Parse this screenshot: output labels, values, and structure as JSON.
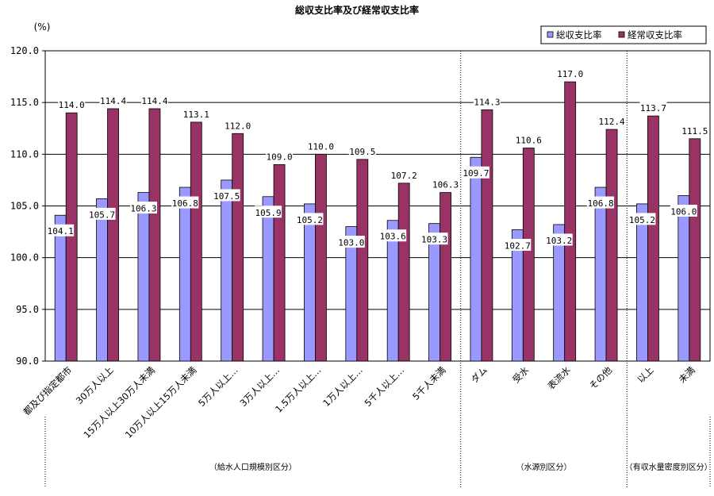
{
  "chart_data": {
    "type": "bar",
    "title": "総収支比率及び経常収支比率",
    "unit_label": "(%)",
    "ylim": [
      90.0,
      120.0
    ],
    "yticks": [
      "90.0",
      "95.0",
      "100.0",
      "105.0",
      "110.0",
      "115.0",
      "120.0"
    ],
    "categories": [
      "都及び指定都市",
      "30万人以上",
      "15万人以上30万人未満",
      "10万人以上15万人未満",
      "5万人以上…",
      "3万人以上…",
      "1.5万人以上…",
      "1万人以上…",
      "5千人以上…",
      "5千人未満",
      "ダム",
      "受水",
      "表流水",
      "その他",
      "以上",
      "未満"
    ],
    "series": [
      {
        "name": "総収支比率",
        "color": "#9999ff",
        "values": [
          104.1,
          105.7,
          106.3,
          106.8,
          107.5,
          105.9,
          105.2,
          103.0,
          103.6,
          103.3,
          109.7,
          102.7,
          103.2,
          106.8,
          105.2,
          106.0
        ],
        "labels": [
          "104.1",
          "105.7",
          "106.3",
          "106.8",
          "107.5",
          "105.9",
          "105.2",
          "103.0",
          "103.6",
          "103.3",
          "109.7",
          "102.7",
          "103.2",
          "106.8",
          "105.2",
          "106.0"
        ]
      },
      {
        "name": "経常収支比率",
        "color": "#993366",
        "values": [
          114.0,
          114.4,
          114.4,
          113.1,
          112.0,
          109.0,
          110.0,
          109.5,
          107.2,
          106.3,
          114.3,
          110.6,
          117.0,
          112.4,
          113.7,
          111.5
        ],
        "labels": [
          "114.0",
          "114.4",
          "114.4",
          "113.1",
          "112.0",
          "109.0",
          "110.0",
          "109.5",
          "107.2",
          "106.3",
          "114.3",
          "110.6",
          "117.0",
          "112.4",
          "113.7",
          "111.5"
        ]
      }
    ],
    "groups": [
      {
        "label": "（給水人口規模別区分）",
        "from": 0,
        "to": 9
      },
      {
        "label": "（水源別区分）",
        "from": 10,
        "to": 13
      },
      {
        "label": "（有収水量密度別区分）",
        "from": 14,
        "to": 15
      }
    ],
    "legend_position": "top-right",
    "grid": true
  }
}
